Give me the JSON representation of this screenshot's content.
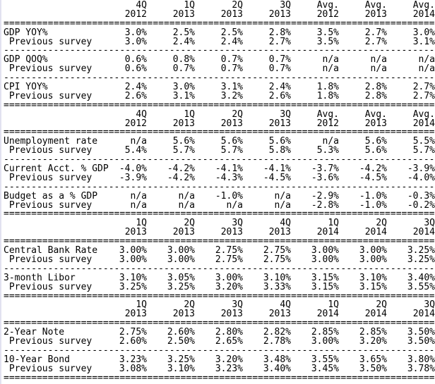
{
  "separators": {
    "equals_line": "==============================================================================",
    "dash_line": "------------------------------------------------------------------------------"
  },
  "sections": [
    {
      "name": "economic-indicators-growth-inflation",
      "columns": [
        {
          "q": "4Q",
          "y": "2012"
        },
        {
          "q": "1Q",
          "y": "2013"
        },
        {
          "q": "2Q",
          "y": "2013"
        },
        {
          "q": "3Q",
          "y": "2013"
        },
        {
          "q": "Avg.",
          "y": "2012"
        },
        {
          "q": "Avg.",
          "y": "2013"
        },
        {
          "q": "Avg.",
          "y": "2014"
        }
      ],
      "groups": [
        {
          "rows": [
            {
              "label": "GDP YOY%",
              "values": [
                "3.0%",
                "2.5%",
                "2.5%",
                "2.8%",
                "3.5%",
                "2.7%",
                "3.0%"
              ]
            },
            {
              "label": " Previous survey",
              "values": [
                "3.0%",
                "2.4%",
                "2.4%",
                "2.7%",
                "3.5%",
                "2.7%",
                "3.1%"
              ]
            }
          ]
        },
        {
          "rows": [
            {
              "label": "GDP QOQ%",
              "values": [
                "0.6%",
                "0.8%",
                "0.7%",
                "0.7%",
                "n/a",
                "n/a",
                "n/a"
              ]
            },
            {
              "label": " Previous survey",
              "values": [
                "0.6%",
                "0.7%",
                "0.7%",
                "0.7%",
                "n/a",
                "n/a",
                "n/a"
              ]
            }
          ]
        },
        {
          "rows": [
            {
              "label": "CPI YOY%",
              "values": [
                "2.4%",
                "3.0%",
                "3.1%",
                "2.4%",
                "1.8%",
                "2.8%",
                "2.7%"
              ]
            },
            {
              "label": " Previous survey",
              "values": [
                "2.6%",
                "3.1%",
                "3.2%",
                "2.6%",
                "1.8%",
                "2.8%",
                "2.7%"
              ]
            }
          ]
        }
      ]
    },
    {
      "name": "economic-indicators-external",
      "columns": [
        {
          "q": "4Q",
          "y": "2012"
        },
        {
          "q": "1Q",
          "y": "2013"
        },
        {
          "q": "2Q",
          "y": "2013"
        },
        {
          "q": "3Q",
          "y": "2013"
        },
        {
          "q": "Avg.",
          "y": "2012"
        },
        {
          "q": "Avg.",
          "y": "2013"
        },
        {
          "q": "Avg.",
          "y": "2014"
        }
      ],
      "groups": [
        {
          "rows": [
            {
              "label": "Unemployment rate",
              "values": [
                "n/a",
                "5.6%",
                "5.6%",
                "5.6%",
                "n/a",
                "5.6%",
                "5.5%"
              ]
            },
            {
              "label": " Previous survey",
              "values": [
                "5.4%",
                "5.7%",
                "5.7%",
                "5.8%",
                "5.3%",
                "5.6%",
                "5.7%"
              ]
            }
          ]
        },
        {
          "rows": [
            {
              "label": "Current Acct. % GDP",
              "values": [
                "-4.0%",
                "-4.2%",
                "-4.1%",
                "-4.1%",
                "-3.7%",
                "-4.2%",
                "-3.9%"
              ]
            },
            {
              "label": " Previous survey",
              "values": [
                "-3.9%",
                "-4.2%",
                "-4.3%",
                "-4.5%",
                "-3.6%",
                "-4.5%",
                "-4.0%"
              ]
            }
          ]
        },
        {
          "rows": [
            {
              "label": "Budget as a % GDP",
              "values": [
                "n/a",
                "n/a",
                "-1.0%",
                "n/a",
                "-2.9%",
                "-1.0%",
                "-0.3%"
              ]
            },
            {
              "label": " Previous survey",
              "values": [
                "n/a",
                "n/a",
                "n/a",
                "n/a",
                "-2.8%",
                "-1.0%",
                "-0.2%"
              ]
            }
          ]
        }
      ]
    },
    {
      "name": "interest-rates",
      "columns": [
        {
          "q": "1Q",
          "y": "2013"
        },
        {
          "q": "2Q",
          "y": "2013"
        },
        {
          "q": "3Q",
          "y": "2013"
        },
        {
          "q": "4Q",
          "y": "2013"
        },
        {
          "q": "1Q",
          "y": "2014"
        },
        {
          "q": "2Q",
          "y": "2014"
        },
        {
          "q": "3Q",
          "y": "2014"
        }
      ],
      "groups": [
        {
          "rows": [
            {
              "label": "Central Bank Rate",
              "values": [
                "3.00%",
                "3.00%",
                "2.75%",
                "2.75%",
                "3.00%",
                "3.00%",
                "3.25%"
              ]
            },
            {
              "label": " Previous survey",
              "values": [
                "3.00%",
                "3.00%",
                "2.75%",
                "2.75%",
                "3.00%",
                "3.00%",
                "3.25%"
              ]
            }
          ]
        },
        {
          "rows": [
            {
              "label": "3-month Libor",
              "values": [
                "3.10%",
                "3.05%",
                "3.00%",
                "3.10%",
                "3.15%",
                "3.10%",
                "3.40%"
              ]
            },
            {
              "label": " Previous survey",
              "values": [
                "3.25%",
                "3.25%",
                "3.20%",
                "3.33%",
                "3.15%",
                "3.15%",
                "3.55%"
              ]
            }
          ]
        }
      ]
    },
    {
      "name": "bond-yields",
      "columns": [
        {
          "q": "1Q",
          "y": "2013"
        },
        {
          "q": "2Q",
          "y": "2013"
        },
        {
          "q": "3Q",
          "y": "2013"
        },
        {
          "q": "4Q",
          "y": "2013"
        },
        {
          "q": "1Q",
          "y": "2014"
        },
        {
          "q": "2Q",
          "y": "2014"
        },
        {
          "q": "3Q",
          "y": "2014"
        }
      ],
      "groups": [
        {
          "rows": [
            {
              "label": "2-Year Note",
              "values": [
                "2.75%",
                "2.60%",
                "2.80%",
                "2.82%",
                "2.85%",
                "2.85%",
                "3.50%"
              ]
            },
            {
              "label": " Previous survey",
              "values": [
                "2.60%",
                "2.50%",
                "2.65%",
                "2.78%",
                "3.00%",
                "3.20%",
                "3.50%"
              ]
            }
          ]
        },
        {
          "rows": [
            {
              "label": "10-Year Bond",
              "values": [
                "3.23%",
                "3.25%",
                "3.20%",
                "3.48%",
                "3.55%",
                "3.65%",
                "3.80%"
              ]
            },
            {
              "label": " Previous survey",
              "values": [
                "3.08%",
                "3.10%",
                "3.23%",
                "3.40%",
                "3.45%",
                "3.50%",
                "3.78%"
              ]
            }
          ]
        }
      ]
    }
  ]
}
